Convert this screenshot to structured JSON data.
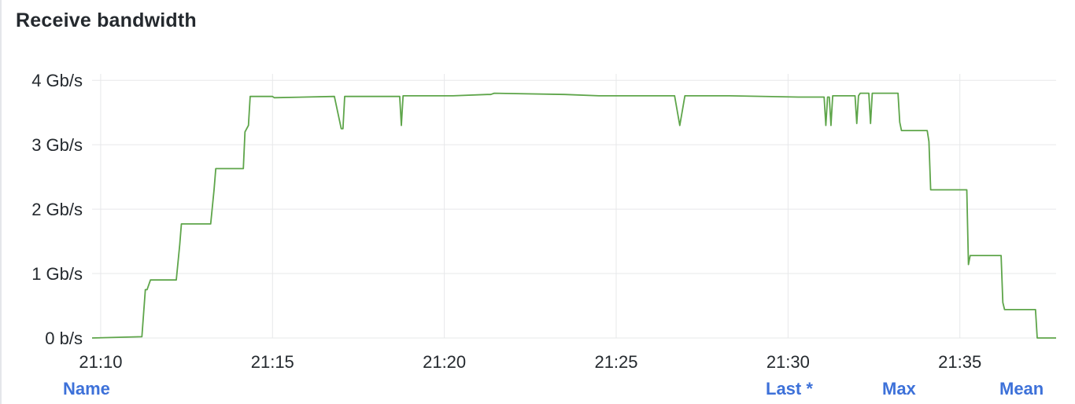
{
  "panel": {
    "title": "Receive bandwidth"
  },
  "legend": {
    "columns": {
      "name": "Name",
      "last": "Last *",
      "max": "Max",
      "mean": "Mean"
    }
  },
  "colors": {
    "series": "#5ea54a",
    "grid": "#e7e8ea",
    "axis_text": "#24292e",
    "legend_header": "#3d71d9"
  },
  "chart_data": {
    "type": "line",
    "title": "Receive bandwidth",
    "xlabel": "",
    "ylabel": "",
    "x_ticks": [
      "21:10",
      "21:15",
      "21:20",
      "21:25",
      "21:30",
      "21:35"
    ],
    "x_tick_values_min": [
      0,
      5,
      10,
      15,
      20,
      25
    ],
    "xlim_min": [
      -0.25,
      27.8
    ],
    "y_ticks": [
      "0 b/s",
      "1 Gb/s",
      "2 Gb/s",
      "3 Gb/s",
      "4 Gb/s"
    ],
    "y_tick_values_gbps": [
      0,
      1,
      2,
      3,
      4
    ],
    "ylim_gbps": [
      0,
      4.1
    ],
    "grid": true,
    "series": [
      {
        "unit": "Gb/s",
        "x_minutes_since_21_10": [
          -0.25,
          1.2,
          1.3,
          1.35,
          1.45,
          2.2,
          2.3,
          2.35,
          3.2,
          3.3,
          3.35,
          4.15,
          4.2,
          4.3,
          4.35,
          5.0,
          5.05,
          6.8,
          7.0,
          7.05,
          7.1,
          8.7,
          8.75,
          8.8,
          10.25,
          11.25,
          11.3,
          11.35,
          11.45,
          13.5,
          14.5,
          14.6,
          15.3,
          16.7,
          16.85,
          17.0,
          17.05,
          18.2,
          18.25,
          18.3,
          20.3,
          21.05,
          21.1,
          21.15,
          21.2,
          21.25,
          21.3,
          21.35,
          21.4,
          21.5,
          21.95,
          22.0,
          22.05,
          22.1,
          22.35,
          22.4,
          22.45,
          23.2,
          23.25,
          23.3,
          23.45,
          24.05,
          24.1,
          24.15,
          24.4,
          24.45,
          25.2,
          25.25,
          25.3,
          25.35,
          26.2,
          26.25,
          26.3,
          26.35,
          26.4,
          27.2,
          27.25,
          27.8
        ],
        "y_gbps": [
          0.0,
          0.02,
          0.75,
          0.75,
          0.9,
          0.9,
          1.45,
          1.77,
          1.77,
          2.3,
          2.63,
          2.63,
          3.2,
          3.3,
          3.75,
          3.75,
          3.73,
          3.75,
          3.25,
          3.25,
          3.75,
          3.75,
          3.3,
          3.76,
          3.76,
          3.78,
          3.78,
          3.78,
          3.8,
          3.78,
          3.76,
          3.76,
          3.76,
          3.76,
          3.3,
          3.76,
          3.76,
          3.76,
          3.76,
          3.76,
          3.74,
          3.74,
          3.3,
          3.74,
          3.74,
          3.3,
          3.76,
          3.76,
          3.76,
          3.76,
          3.76,
          3.33,
          3.76,
          3.8,
          3.8,
          3.33,
          3.8,
          3.8,
          3.35,
          3.22,
          3.22,
          3.22,
          3.05,
          2.3,
          2.3,
          2.3,
          2.3,
          1.14,
          1.28,
          1.28,
          1.28,
          0.55,
          0.44,
          0.44,
          0.44,
          0.44,
          0.0,
          0.0
        ]
      }
    ]
  }
}
